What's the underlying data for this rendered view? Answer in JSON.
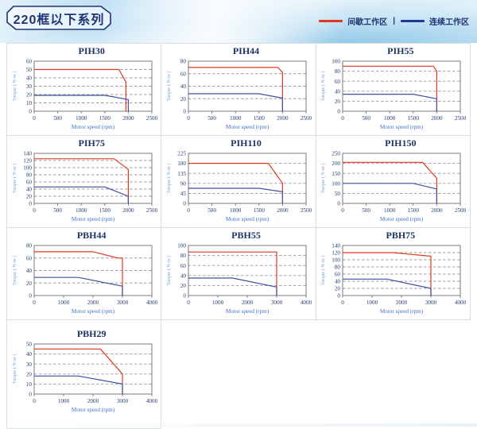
{
  "header": {
    "title": "220框以下系列",
    "legend": [
      {
        "name": "intermittent-zone",
        "label": "间歇工作区",
        "color": "#e0391f"
      },
      {
        "name": "continuous-zone",
        "label": "连续工作区",
        "color": "#1f3a93"
      }
    ],
    "legend_separator": "|"
  },
  "axes": {
    "x_label": "Motor speed (rpm)",
    "y_label": "Torque ( N·m )"
  },
  "colors": {
    "intermittent": "#e0391f",
    "continuous": "#3f51a0",
    "grid": "#9b9b9b",
    "frame": "#6b6b6b",
    "tick_text": "#243f6e",
    "y_axis_label": "#7aa3d4",
    "x_axis_label": "#3f74c0"
  },
  "chart_data": [
    {
      "type": "line",
      "title": "PIH30",
      "xlim": [
        0,
        2500
      ],
      "ylim": [
        0,
        60
      ],
      "xticks": [
        0,
        500,
        1000,
        1500,
        2000,
        2500
      ],
      "yticks": [
        0,
        10,
        20,
        30,
        40,
        50,
        60
      ],
      "series": [
        {
          "name": "间歇工作区",
          "color_key": "intermittent",
          "points": [
            [
              0,
              50
            ],
            [
              1800,
              50
            ],
            [
              1950,
              35
            ],
            [
              1950,
              0
            ]
          ]
        },
        {
          "name": "连续工作区",
          "color_key": "continuous",
          "points": [
            [
              0,
              19
            ],
            [
              1500,
              19
            ],
            [
              2000,
              14
            ],
            [
              2000,
              0
            ]
          ]
        }
      ]
    },
    {
      "type": "line",
      "title": "PIH44",
      "xlim": [
        0,
        2500
      ],
      "ylim": [
        0,
        80
      ],
      "xticks": [
        0,
        500,
        1000,
        1500,
        2000,
        2500
      ],
      "yticks": [
        0,
        20,
        40,
        60,
        80
      ],
      "series": [
        {
          "name": "间歇工作区",
          "color_key": "intermittent",
          "points": [
            [
              0,
              70
            ],
            [
              1900,
              70
            ],
            [
              2000,
              62
            ],
            [
              2000,
              0
            ]
          ]
        },
        {
          "name": "连续工作区",
          "color_key": "continuous",
          "points": [
            [
              0,
              28
            ],
            [
              1500,
              28
            ],
            [
              2000,
              21
            ],
            [
              2000,
              0
            ]
          ]
        }
      ]
    },
    {
      "type": "line",
      "title": "PIH55",
      "xlim": [
        0,
        2500
      ],
      "ylim": [
        0,
        100
      ],
      "xticks": [
        0,
        500,
        1000,
        1500,
        2000,
        2500
      ],
      "yticks": [
        0,
        20,
        40,
        60,
        80,
        100
      ],
      "series": [
        {
          "name": "间歇工作区",
          "color_key": "intermittent",
          "points": [
            [
              0,
              90
            ],
            [
              1930,
              90
            ],
            [
              2000,
              80
            ],
            [
              2000,
              0
            ]
          ]
        },
        {
          "name": "连续工作区",
          "color_key": "continuous",
          "points": [
            [
              0,
              34
            ],
            [
              1500,
              34
            ],
            [
              2000,
              25
            ],
            [
              2000,
              0
            ]
          ]
        }
      ]
    },
    {
      "type": "line",
      "title": "PIH75",
      "xlim": [
        0,
        2500
      ],
      "ylim": [
        0,
        140
      ],
      "xticks": [
        0,
        500,
        1000,
        1500,
        2000,
        2500
      ],
      "yticks": [
        0,
        20,
        40,
        60,
        80,
        100,
        120,
        140
      ],
      "series": [
        {
          "name": "间歇工作区",
          "color_key": "intermittent",
          "points": [
            [
              0,
              125
            ],
            [
              1700,
              125
            ],
            [
              2000,
              95
            ],
            [
              2000,
              0
            ]
          ]
        },
        {
          "name": "连续工作区",
          "color_key": "continuous",
          "points": [
            [
              0,
              46
            ],
            [
              1500,
              46
            ],
            [
              2000,
              20
            ],
            [
              2000,
              0
            ]
          ]
        }
      ]
    },
    {
      "type": "line",
      "title": "PIH110",
      "xlim": [
        0,
        2500
      ],
      "ylim": [
        0,
        225
      ],
      "xticks": [
        0,
        500,
        1000,
        1500,
        2000,
        2500
      ],
      "yticks": [
        0,
        45,
        90,
        135,
        180,
        225
      ],
      "series": [
        {
          "name": "间歇工作区",
          "color_key": "intermittent",
          "points": [
            [
              0,
              180
            ],
            [
              1700,
              180
            ],
            [
              2000,
              90
            ],
            [
              2000,
              0
            ]
          ]
        },
        {
          "name": "连续工作区",
          "color_key": "continuous",
          "points": [
            [
              0,
              68
            ],
            [
              1500,
              68
            ],
            [
              2000,
              52
            ],
            [
              2000,
              0
            ]
          ]
        }
      ]
    },
    {
      "type": "line",
      "title": "PIH150",
      "xlim": [
        0,
        2500
      ],
      "ylim": [
        0,
        250
      ],
      "xticks": [
        0,
        500,
        1000,
        1500,
        2000,
        2500
      ],
      "yticks": [
        0,
        50,
        100,
        150,
        200,
        250
      ],
      "series": [
        {
          "name": "间歇工作区",
          "color_key": "intermittent",
          "points": [
            [
              0,
              205
            ],
            [
              1700,
              205
            ],
            [
              2000,
              125
            ],
            [
              2000,
              0
            ]
          ]
        },
        {
          "name": "连续工作区",
          "color_key": "continuous",
          "points": [
            [
              0,
              100
            ],
            [
              1500,
              100
            ],
            [
              2000,
              72
            ],
            [
              2000,
              0
            ]
          ]
        }
      ]
    },
    {
      "type": "line",
      "title": "PBH44",
      "xlim": [
        0,
        4000
      ],
      "ylim": [
        0,
        80
      ],
      "xticks": [
        0,
        1000,
        2000,
        3000,
        4000
      ],
      "yticks": [
        0,
        20,
        40,
        60,
        80
      ],
      "series": [
        {
          "name": "间歇工作区",
          "color_key": "intermittent",
          "points": [
            [
              0,
              70
            ],
            [
              2000,
              70
            ],
            [
              2850,
              60
            ],
            [
              3000,
              60
            ],
            [
              3000,
              0
            ]
          ]
        },
        {
          "name": "连续工作区",
          "color_key": "continuous",
          "points": [
            [
              0,
              29
            ],
            [
              1500,
              29
            ],
            [
              3000,
              15
            ],
            [
              3000,
              0
            ]
          ]
        }
      ]
    },
    {
      "type": "line",
      "title": "PBH55",
      "xlim": [
        0,
        4000
      ],
      "ylim": [
        0,
        100
      ],
      "xticks": [
        0,
        1000,
        2000,
        3000,
        4000
      ],
      "yticks": [
        0,
        20,
        40,
        60,
        80,
        100
      ],
      "series": [
        {
          "name": "间歇工作区",
          "color_key": "intermittent",
          "points": [
            [
              0,
              87
            ],
            [
              3000,
              87
            ],
            [
              3000,
              0
            ]
          ]
        },
        {
          "name": "连续工作区",
          "color_key": "continuous",
          "points": [
            [
              0,
              35
            ],
            [
              1500,
              35
            ],
            [
              3000,
              17
            ],
            [
              3000,
              0
            ]
          ]
        }
      ]
    },
    {
      "type": "line",
      "title": "PBH75",
      "xlim": [
        0,
        4000
      ],
      "ylim": [
        0,
        140
      ],
      "xticks": [
        0,
        1000,
        2000,
        3000,
        4000
      ],
      "yticks": [
        0,
        20,
        40,
        60,
        80,
        100,
        120,
        140
      ],
      "series": [
        {
          "name": "间歇工作区",
          "color_key": "intermittent",
          "points": [
            [
              0,
              120
            ],
            [
              1700,
              120
            ],
            [
              3000,
              110
            ],
            [
              3000,
              0
            ]
          ]
        },
        {
          "name": "连续工作区",
          "color_key": "continuous",
          "points": [
            [
              0,
              46
            ],
            [
              1500,
              46
            ],
            [
              3000,
              20
            ],
            [
              3000,
              0
            ]
          ]
        }
      ]
    },
    {
      "type": "line",
      "title": "PBH29",
      "xlim": [
        0,
        4000
      ],
      "ylim": [
        0,
        50
      ],
      "xticks": [
        0,
        1000,
        2000,
        3000,
        4000
      ],
      "yticks": [
        0,
        10,
        20,
        30,
        40,
        50
      ],
      "series": [
        {
          "name": "间歇工作区",
          "color_key": "intermittent",
          "points": [
            [
              0,
              45
            ],
            [
              2250,
              45
            ],
            [
              3000,
              20
            ],
            [
              3000,
              0
            ]
          ]
        },
        {
          "name": "连续工作区",
          "color_key": "continuous",
          "points": [
            [
              0,
              18
            ],
            [
              1500,
              18
            ],
            [
              3000,
              10
            ],
            [
              3000,
              0
            ]
          ]
        }
      ]
    }
  ]
}
